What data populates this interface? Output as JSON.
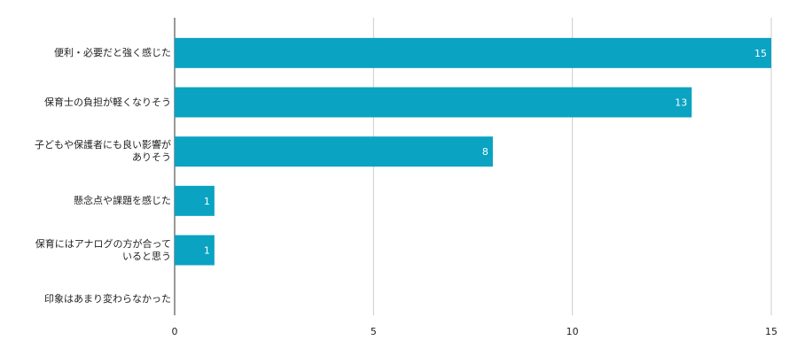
{
  "chart_data": {
    "type": "bar",
    "orientation": "horizontal",
    "categories": [
      "便利・必要だと強く感じた",
      "保育士の負担が軽くなりそう",
      "子どもや保護者にも良い影響が\nありそう",
      "懸念点や課題を感じた",
      "保育にはアナログの方が合って\nいると思う",
      "印象はあまり変わらなかった"
    ],
    "values": [
      15,
      13,
      8,
      1,
      1,
      0
    ],
    "color": "#0aa3c2",
    "xlim": [
      0,
      15
    ],
    "xticks": [
      0,
      5,
      10,
      15
    ],
    "grid": true
  }
}
